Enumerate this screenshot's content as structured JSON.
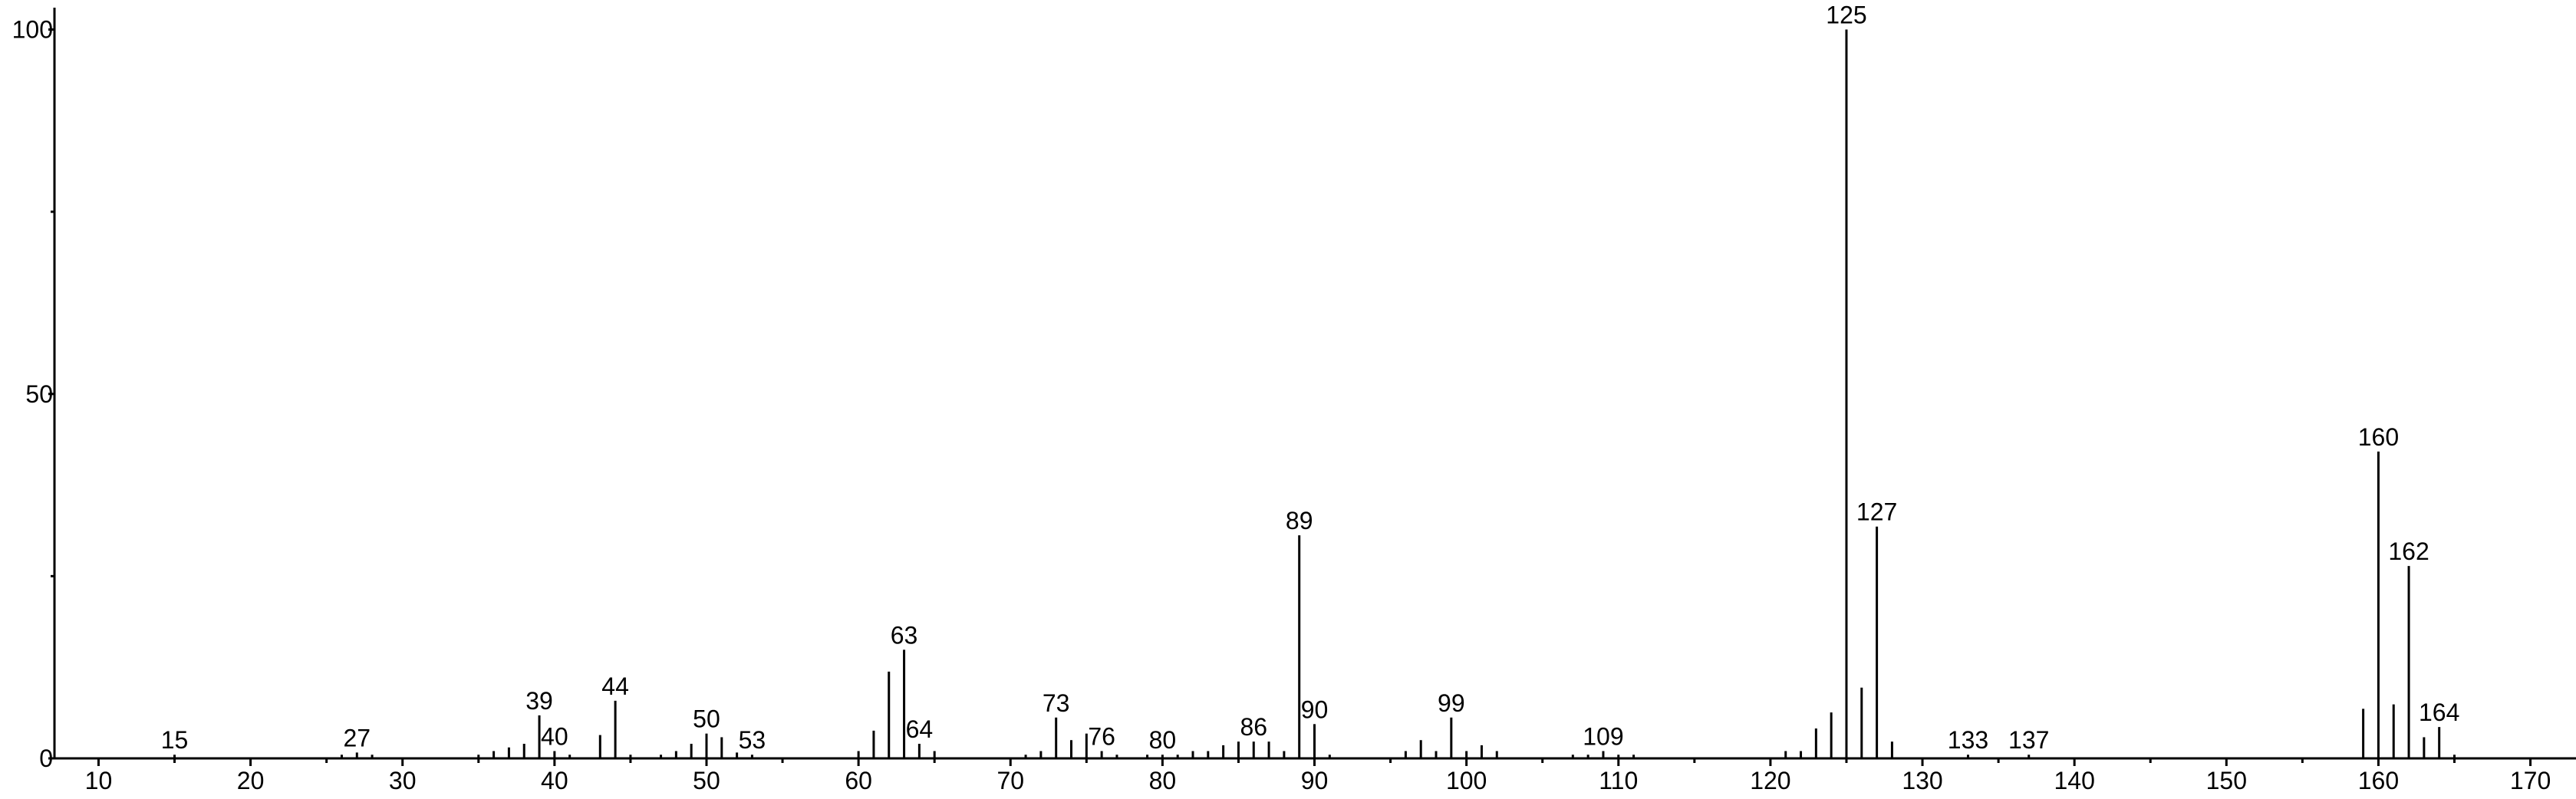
{
  "chart_data": {
    "type": "stem",
    "x": [
      15,
      26,
      27,
      28,
      35,
      36,
      37,
      38,
      39,
      40,
      41,
      43,
      44,
      45,
      47,
      48,
      49,
      50,
      51,
      52,
      53,
      60,
      61,
      62,
      63,
      64,
      65,
      71,
      72,
      73,
      74,
      75,
      76,
      77,
      79,
      80,
      81,
      82,
      83,
      84,
      85,
      86,
      87,
      88,
      89,
      90,
      91,
      96,
      97,
      98,
      99,
      100,
      101,
      102,
      107,
      108,
      109,
      110,
      111,
      121,
      122,
      123,
      124,
      125,
      126,
      127,
      128,
      133,
      137,
      159,
      160,
      161,
      162,
      163,
      164,
      165
    ],
    "values": [
      0.5,
      0.5,
      0.8,
      0.5,
      0.5,
      1,
      1.5,
      2,
      5.9,
      1,
      0.5,
      3.2,
      7.9,
      0.5,
      0.5,
      1,
      2,
      3.4,
      2.9,
      0.8,
      0.5,
      1,
      3.8,
      11.9,
      14.9,
      2,
      1,
      0.5,
      1,
      5.6,
      2.5,
      3.4,
      1,
      0.5,
      0.5,
      0.5,
      0.5,
      1,
      1,
      1.8,
      2.3,
      2.3,
      2.3,
      1,
      30.6,
      4.7,
      0.5,
      1,
      2.5,
      1,
      5.6,
      1,
      1.8,
      1,
      0.5,
      0.5,
      1,
      0.5,
      0.5,
      1,
      1,
      4.1,
      6.3,
      100,
      9.7,
      31.8,
      2.3,
      0.5,
      0.5,
      6.8,
      42.1,
      7.4,
      26.4,
      2.9,
      4.3,
      0.5
    ],
    "peak_labels": [
      "15",
      null,
      "27",
      null,
      null,
      null,
      null,
      null,
      "39",
      "40",
      null,
      null,
      "44",
      null,
      null,
      null,
      null,
      "50",
      null,
      null,
      "53",
      null,
      null,
      null,
      "63",
      "64",
      null,
      null,
      null,
      "73",
      null,
      null,
      "76",
      null,
      null,
      "80",
      null,
      null,
      null,
      null,
      null,
      "86",
      null,
      null,
      "89",
      "90",
      null,
      null,
      null,
      null,
      "99",
      null,
      null,
      null,
      null,
      null,
      "109",
      null,
      null,
      null,
      null,
      null,
      null,
      "125",
      null,
      "127",
      null,
      "133",
      "137",
      null,
      "160",
      null,
      "162",
      null,
      "164",
      null
    ],
    "color": "#000000",
    "xlim": [
      7.1,
      173
    ],
    "xticks": [
      10,
      20,
      30,
      40,
      50,
      60,
      70,
      80,
      90,
      100,
      110,
      120,
      130,
      140,
      150,
      160,
      170
    ],
    "xminorticks": [
      15,
      25,
      35,
      45,
      55,
      65,
      75,
      85,
      95,
      105,
      115,
      125,
      135,
      145,
      155,
      165
    ],
    "ylim": [
      0,
      103
    ],
    "yticks": [
      0,
      50,
      100
    ],
    "yminorticks": [
      25,
      75
    ]
  }
}
